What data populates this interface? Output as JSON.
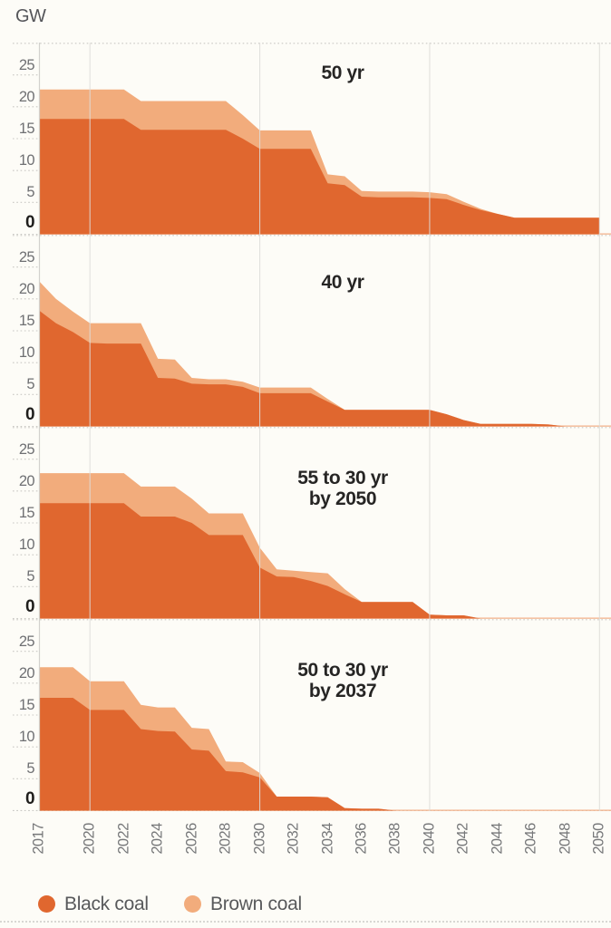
{
  "unit_label": "GW",
  "colors": {
    "black_coal": "#E0672F",
    "brown_coal": "#F2AC7C",
    "zero_line": "#F2B088",
    "grid_vertical": "#DEDDD9",
    "grid_dotted": "#C9C8C4",
    "axis_line": "#D2D1CD",
    "tick_text": "#77787A",
    "tick_zero_text": "#1F1E1C",
    "title_text": "#262524",
    "legend_text": "#58595B",
    "background": "#FDFCF7"
  },
  "legend": [
    {
      "label": "Black coal",
      "color": "#E0672F"
    },
    {
      "label": "Brown coal",
      "color": "#F2AC7C"
    }
  ],
  "x_axis": {
    "ticks": [
      "2017",
      "2020",
      "2022",
      "2024",
      "2026",
      "2028",
      "2030",
      "2032",
      "2034",
      "2036",
      "2038",
      "2040",
      "2042",
      "2044",
      "2046",
      "2048",
      "2050"
    ],
    "gridline_years": [
      2020,
      2030,
      2040,
      2050
    ],
    "start_year": 2017,
    "end_year": 2050
  },
  "y_axis": {
    "ticks": [
      25,
      20,
      15,
      10,
      5,
      0
    ],
    "max": 30,
    "unit": "GW"
  },
  "chart_data": [
    {
      "type": "area",
      "stacked": true,
      "title": "50 yr",
      "ylabel": "GW",
      "ylim": [
        0,
        30
      ],
      "x": [
        2017,
        2018,
        2019,
        2020,
        2021,
        2022,
        2023,
        2024,
        2025,
        2026,
        2027,
        2028,
        2029,
        2030,
        2031,
        2032,
        2033,
        2034,
        2035,
        2036,
        2037,
        2038,
        2039,
        2040,
        2041,
        2042,
        2043,
        2044,
        2045,
        2046,
        2047,
        2048,
        2049,
        2050
      ],
      "series": [
        {
          "name": "Black coal",
          "values": [
            18.1,
            18.1,
            18.1,
            18.1,
            18.1,
            18.1,
            16.4,
            16.4,
            16.4,
            16.4,
            16.4,
            16.4,
            15.0,
            13.4,
            13.4,
            13.4,
            13.4,
            8.0,
            7.7,
            5.9,
            5.8,
            5.8,
            5.8,
            5.7,
            5.5,
            4.6,
            3.8,
            3.2,
            2.6,
            2.6,
            2.6,
            2.6,
            2.6,
            2.6
          ]
        },
        {
          "name": "Brown coal",
          "values": [
            4.6,
            4.6,
            4.6,
            4.6,
            4.6,
            4.6,
            4.5,
            4.5,
            4.5,
            4.5,
            4.5,
            4.5,
            3.7,
            2.9,
            2.9,
            2.9,
            2.9,
            1.4,
            1.4,
            0.9,
            0.9,
            0.9,
            0.9,
            0.9,
            0.8,
            0.5,
            0.2,
            0,
            0,
            0,
            0,
            0,
            0,
            0
          ]
        }
      ]
    },
    {
      "type": "area",
      "stacked": true,
      "title": "40 yr",
      "ylabel": "GW",
      "ylim": [
        0,
        30
      ],
      "x": [
        2017,
        2018,
        2019,
        2020,
        2021,
        2022,
        2023,
        2024,
        2025,
        2026,
        2027,
        2028,
        2029,
        2030,
        2031,
        2032,
        2033,
        2034,
        2035,
        2036,
        2037,
        2038,
        2039,
        2040,
        2041,
        2042,
        2043,
        2044,
        2045,
        2046,
        2047,
        2048,
        2049,
        2050
      ],
      "series": [
        {
          "name": "Black coal",
          "values": [
            18.2,
            16.2,
            14.8,
            13.1,
            13.0,
            13.0,
            13.0,
            7.6,
            7.5,
            6.7,
            6.6,
            6.6,
            6.2,
            5.2,
            5.2,
            5.2,
            5.2,
            3.9,
            2.6,
            2.6,
            2.6,
            2.6,
            2.6,
            2.6,
            1.9,
            1.0,
            0.4,
            0.4,
            0.4,
            0.4,
            0.3,
            0,
            0,
            0
          ]
        },
        {
          "name": "Brown coal",
          "values": [
            4.6,
            3.8,
            3.2,
            3.1,
            3.2,
            3.2,
            3.2,
            3.0,
            3.0,
            0.9,
            0.8,
            0.8,
            0.8,
            0.9,
            0.9,
            0.9,
            0.9,
            0.4,
            0,
            0,
            0,
            0,
            0,
            0,
            0,
            0,
            0,
            0,
            0,
            0,
            0,
            0,
            0,
            0
          ]
        }
      ]
    },
    {
      "type": "area",
      "stacked": true,
      "title": "55 to 30 yr",
      "title2": "by 2050",
      "ylabel": "GW",
      "ylim": [
        0,
        30
      ],
      "x": [
        2017,
        2018,
        2019,
        2020,
        2021,
        2022,
        2023,
        2024,
        2025,
        2026,
        2027,
        2028,
        2029,
        2030,
        2031,
        2032,
        2033,
        2034,
        2035,
        2036,
        2037,
        2038,
        2039,
        2040,
        2041,
        2042,
        2043,
        2044,
        2045,
        2046,
        2047,
        2048,
        2049,
        2050
      ],
      "series": [
        {
          "name": "Black coal",
          "values": [
            18.1,
            18.1,
            18.1,
            18.1,
            18.1,
            18.1,
            16.0,
            16.0,
            16.0,
            15.0,
            13.1,
            13.1,
            13.1,
            8.0,
            6.6,
            6.5,
            5.9,
            5.1,
            3.8,
            2.6,
            2.6,
            2.6,
            2.6,
            0.6,
            0.5,
            0.5,
            0,
            0,
            0,
            0,
            0,
            0,
            0,
            0
          ]
        },
        {
          "name": "Brown coal",
          "values": [
            4.7,
            4.7,
            4.7,
            4.7,
            4.7,
            4.7,
            4.7,
            4.7,
            4.7,
            3.8,
            3.4,
            3.4,
            3.4,
            3.1,
            1.1,
            1.0,
            1.4,
            2.0,
            0.8,
            0,
            0,
            0,
            0,
            0,
            0,
            0,
            0,
            0,
            0,
            0,
            0,
            0,
            0,
            0
          ]
        }
      ]
    },
    {
      "type": "area",
      "stacked": true,
      "title": "50 to 30 yr",
      "title2": "by 2037",
      "ylabel": "GW",
      "ylim": [
        0,
        30
      ],
      "x": [
        2017,
        2018,
        2019,
        2020,
        2021,
        2022,
        2023,
        2024,
        2025,
        2026,
        2027,
        2028,
        2029,
        2030,
        2031,
        2032,
        2033,
        2034,
        2035,
        2036,
        2037,
        2038,
        2039,
        2040,
        2041,
        2042,
        2043,
        2044,
        2045,
        2046,
        2047,
        2048,
        2049,
        2050
      ],
      "series": [
        {
          "name": "Black coal",
          "values": [
            17.7,
            17.7,
            17.7,
            15.8,
            15.8,
            15.8,
            12.8,
            12.5,
            12.4,
            9.6,
            9.4,
            6.2,
            6.0,
            5.2,
            2.2,
            2.2,
            2.2,
            2.1,
            0.4,
            0.3,
            0.3,
            0,
            0,
            0,
            0,
            0,
            0,
            0,
            0,
            0,
            0,
            0,
            0,
            0
          ]
        },
        {
          "name": "Brown coal",
          "values": [
            4.8,
            4.8,
            4.8,
            4.5,
            4.5,
            4.5,
            3.8,
            3.7,
            3.8,
            3.4,
            3.4,
            1.5,
            1.6,
            0.7,
            0,
            0,
            0,
            0,
            0,
            0,
            0,
            0,
            0,
            0,
            0,
            0,
            0,
            0,
            0,
            0,
            0,
            0,
            0,
            0
          ]
        }
      ]
    }
  ]
}
